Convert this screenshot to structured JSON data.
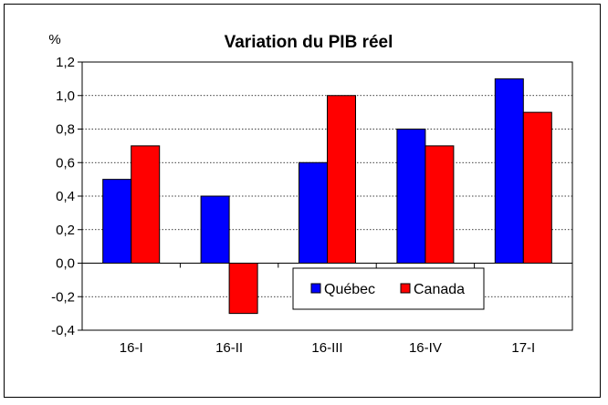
{
  "chart_data": {
    "type": "bar",
    "title": "Variation du PIB réel",
    "ylabel": "%",
    "xlabel": "",
    "categories": [
      "16-I",
      "16-II",
      "16-III",
      "16-IV",
      "17-I"
    ],
    "series": [
      {
        "name": "Québec",
        "values": [
          0.5,
          0.4,
          0.6,
          0.8,
          1.1
        ],
        "color": "#0000FF"
      },
      {
        "name": "Canada",
        "values": [
          0.7,
          -0.3,
          1.0,
          0.7,
          0.9
        ],
        "color": "#FF0000"
      }
    ],
    "ylim": [
      -0.4,
      1.2
    ],
    "yticks": [
      "-0,4",
      "-0,2",
      "0,0",
      "0,2",
      "0,4",
      "0,6",
      "0,8",
      "1,0",
      "1,2"
    ],
    "grid": true,
    "legend_position": "bottom-center"
  }
}
